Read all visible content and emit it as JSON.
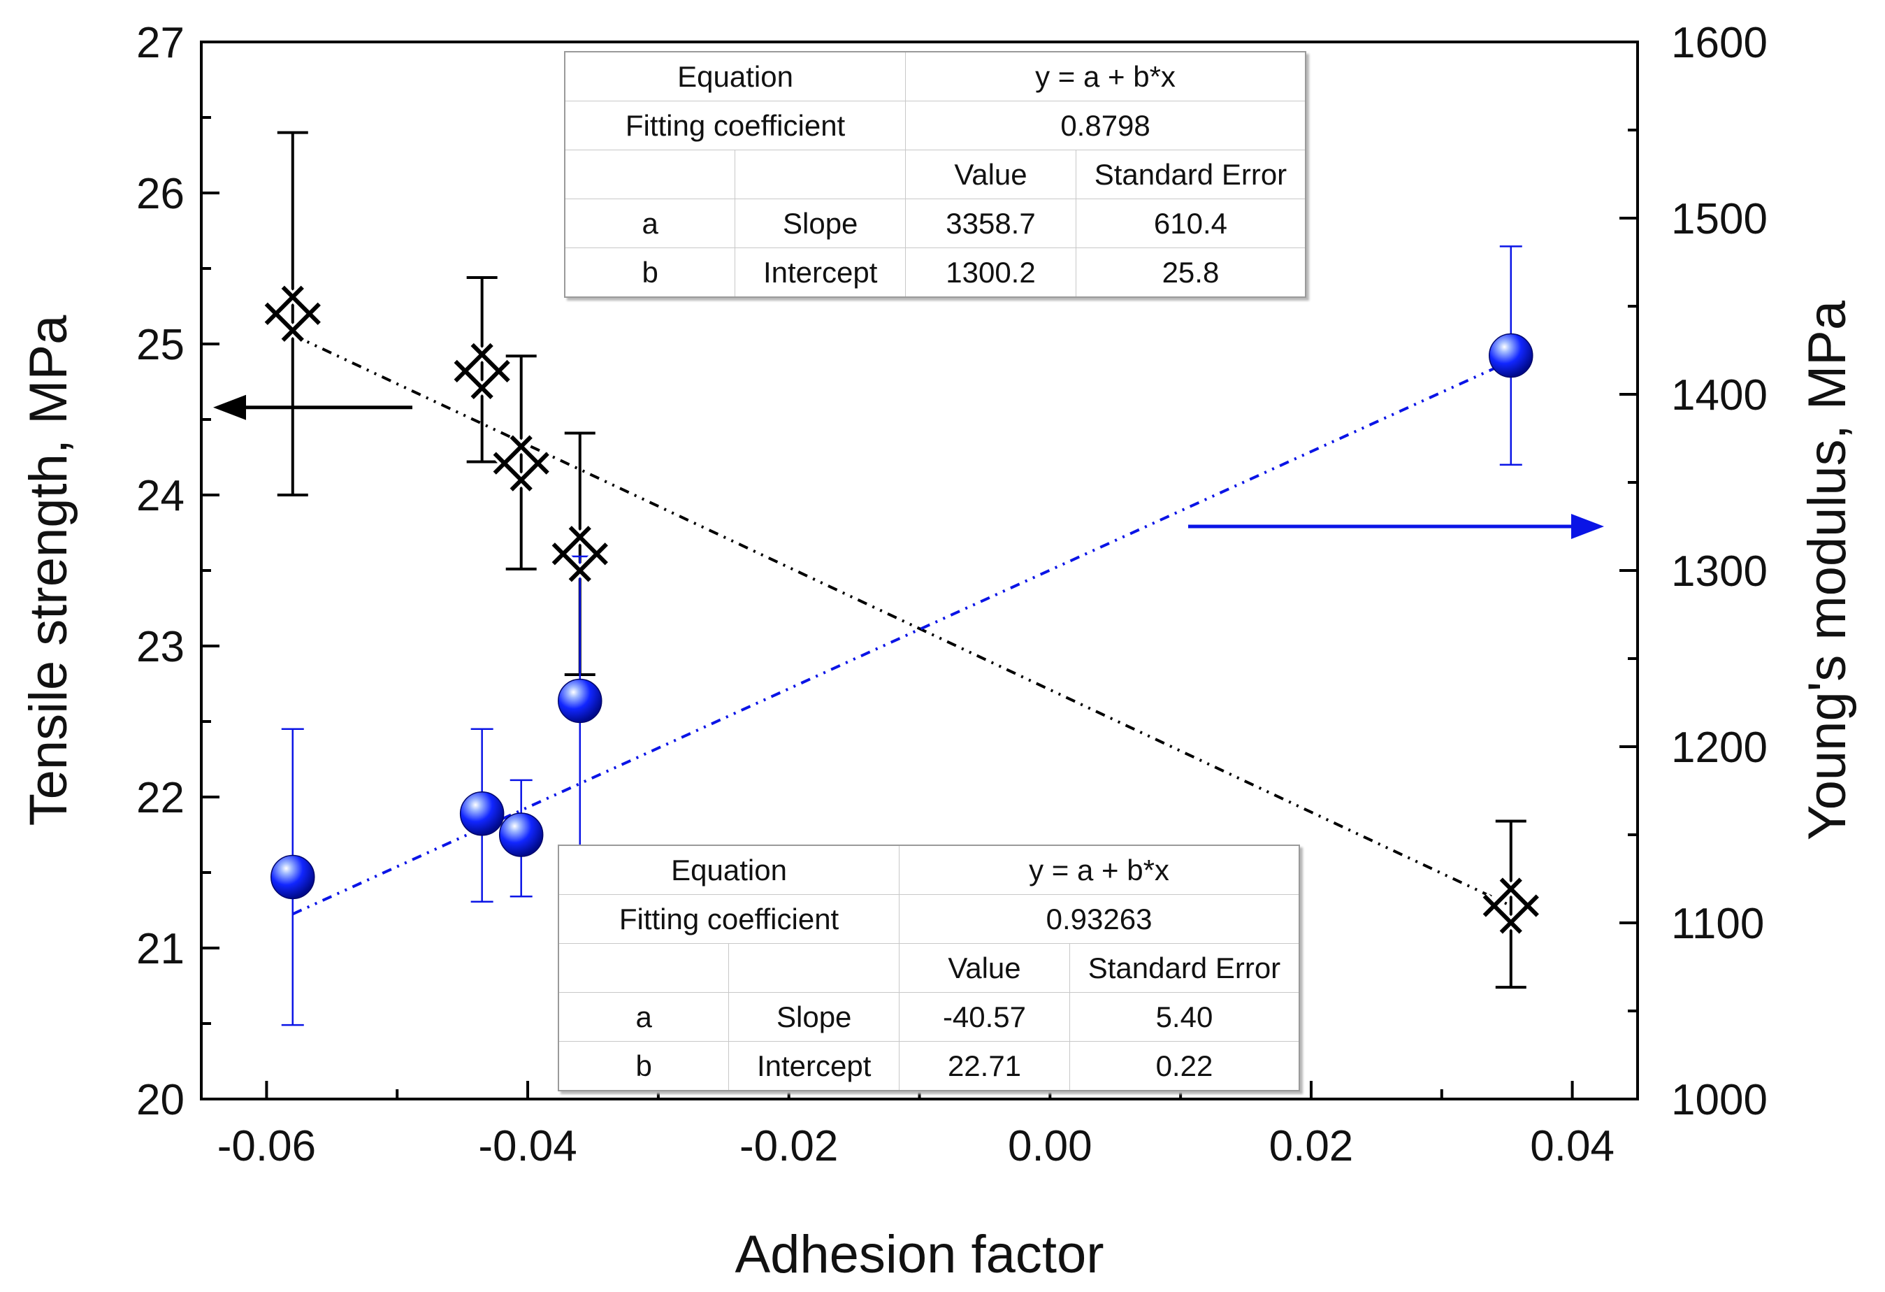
{
  "chart_data": {
    "type": "scatter",
    "xlabel": "Adhesion factor",
    "ylabel_left": "Tensile strength, MPa",
    "ylabel_right": "Young's modulus, MPa",
    "xlim": [
      -0.065,
      0.045
    ],
    "ylim_left": [
      20,
      27
    ],
    "ylim_right": [
      1000,
      1600
    ],
    "x_ticks": [
      "-0.06",
      "-0.04",
      "-0.02",
      "0.00",
      "0.02",
      "0.04"
    ],
    "y_ticks_left": [
      "20",
      "21",
      "22",
      "23",
      "24",
      "25",
      "26",
      "27"
    ],
    "y_ticks_right": [
      "1000",
      "1100",
      "1200",
      "1300",
      "1400",
      "1500",
      "1600"
    ],
    "grid": false,
    "series": [
      {
        "axis": "left",
        "marker": "crossed-x",
        "color": "#000000",
        "x": [
          -0.058,
          -0.0435,
          -0.0405,
          -0.036,
          0.0353
        ],
        "y": [
          25.2,
          24.82,
          24.21,
          23.61,
          21.28
        ],
        "err_low": [
          1.2,
          0.6,
          0.7,
          0.8,
          0.54
        ],
        "err_high": [
          1.2,
          0.62,
          0.71,
          0.8,
          0.56
        ],
        "fit_line": {
          "x": [
            -0.058,
            0.0353
          ],
          "y": [
            25.06,
            21.28
          ],
          "color": "#000000"
        }
      },
      {
        "axis": "right",
        "marker": "sphere",
        "color": "#0a14e6",
        "x": [
          -0.058,
          -0.0435,
          -0.0405,
          -0.036,
          0.0353
        ],
        "y": [
          1126,
          1162,
          1150,
          1226,
          1422
        ],
        "err_low": [
          84,
          50,
          35,
          103,
          62
        ],
        "err_high": [
          84,
          48,
          31,
          82,
          62
        ],
        "fit_line": {
          "x": [
            -0.058,
            0.0353
          ],
          "y": [
            1105,
            1419
          ],
          "color": "#0a14e6"
        }
      }
    ],
    "arrows": [
      {
        "direction": "left",
        "color": "#000000",
        "refers_to": "left axis"
      },
      {
        "direction": "right",
        "color": "#0a14e6",
        "refers_to": "right axis"
      }
    ]
  },
  "fit_tables": {
    "top": {
      "equation_label": "Equation",
      "equation": "y = a + b*x",
      "coef_label": "Fitting coefficient",
      "coef_value": "0.8798",
      "col_value": "Value",
      "col_error": "Standard Error",
      "rows": [
        {
          "param": "a",
          "name": "Slope",
          "value": "3358.7",
          "error": "610.4"
        },
        {
          "param": "b",
          "name": "Intercept",
          "value": "1300.2",
          "error": "25.8"
        }
      ]
    },
    "bottom": {
      "equation_label": "Equation",
      "equation": "y = a + b*x",
      "coef_label": "Fitting coefficient",
      "coef_value": "0.93263",
      "col_value": "Value",
      "col_error": "Standard Error",
      "rows": [
        {
          "param": "a",
          "name": "Slope",
          "value": "-40.57",
          "error": "5.40"
        },
        {
          "param": "b",
          "name": "Intercept",
          "value": "22.71",
          "error": "0.22"
        }
      ]
    }
  }
}
